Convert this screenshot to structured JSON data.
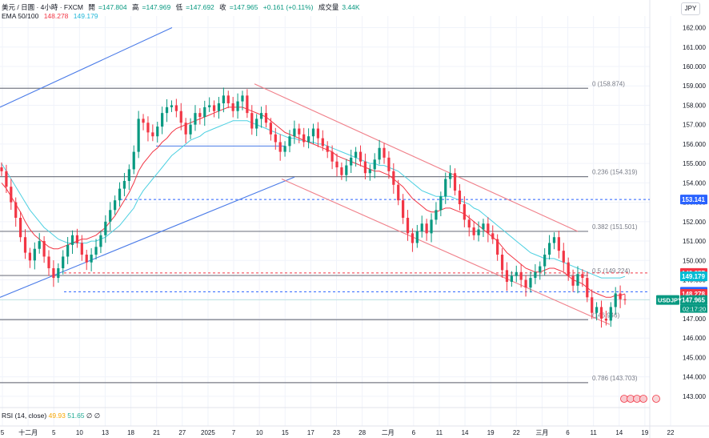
{
  "header": {
    "symbol": "美元 / 日圓 · 4小時 · FXCM",
    "open_label": "開",
    "open_value": "=147.804",
    "high_label": "高",
    "high_value": "=147.969",
    "low_label": "低",
    "low_value": "=147.692",
    "close_label": "收",
    "close_value": "=147.965",
    "change": "+0.161 (+0.11%)",
    "volume_label": "成交量",
    "volume_value": "3.44K",
    "ema_label": "EMA 50/100",
    "ema50_value": "148.278",
    "ema100_value": "149.179"
  },
  "currency": "JPY",
  "rsi": {
    "label": "RSI (14, close)",
    "value1": "49.93",
    "value2": "51.65",
    "value3": "∅",
    "value4": "∅"
  },
  "colors": {
    "up": "#089981",
    "down": "#f23645",
    "ema50": "#f23645",
    "ema100": "#4dd0e1",
    "channel_up": "#4a7be8",
    "channel_down": "#f0808a",
    "fib": "#787b86",
    "blue_dash": "#2962ff",
    "red_dash": "#f23645"
  },
  "chart_data": {
    "type": "candlestick",
    "y_axis": {
      "range": [
        142.5,
        162.6
      ],
      "ticks": [
        "162.000",
        "161.000",
        "160.000",
        "159.000",
        "158.000",
        "157.000",
        "156.000",
        "155.000",
        "154.000",
        "153.000",
        "152.000",
        "151.000",
        "150.000",
        "149.000",
        "148.000",
        "147.000",
        "146.000",
        "145.000",
        "144.000",
        "143.000"
      ]
    },
    "x_axis": {
      "ticks": [
        "5",
        "十二月",
        "5",
        "10",
        "13",
        "18",
        "21",
        "27",
        "2025",
        "7",
        "10",
        "15",
        "17",
        "23",
        "28",
        "二月",
        "6",
        "11",
        "14",
        "19",
        "22",
        "三月",
        "6",
        "11",
        "14",
        "19",
        "22"
      ]
    },
    "fib_levels": [
      {
        "label": "0 (158.874)",
        "value": 158.874
      },
      {
        "label": "0.236 (154.319)",
        "value": 154.319
      },
      {
        "label": "0.382 (151.501)",
        "value": 151.501
      },
      {
        "label": "0.5 (149.224)",
        "value": 149.224
      },
      {
        "label": "(146.946)",
        "value": 146.946
      },
      {
        "label": "0.786 (143.703)",
        "value": 143.703
      }
    ],
    "price_tags": [
      {
        "label": "153.141",
        "value": 153.141,
        "color": "#2962ff"
      },
      {
        "label": "149.357",
        "value": 149.357,
        "color": "#f23645"
      },
      {
        "label": "149.179",
        "value": 149.179,
        "color": "#00bcd4"
      },
      {
        "label": "148.389",
        "value": 148.389,
        "color": "#2962ff"
      },
      {
        "label": "148.278",
        "value": 148.278,
        "color": "#f23645"
      },
      {
        "label": "147.965",
        "value": 147.965,
        "color": "#089981"
      }
    ],
    "symbol_tag": "USDJPY",
    "countdown": "02:17:20",
    "dashed_levels": [
      {
        "value": 153.141,
        "color": "#2962ff"
      },
      {
        "value": 149.357,
        "color": "#f23645"
      },
      {
        "value": 148.389,
        "color": "#2962ff"
      }
    ],
    "close_series": [
      154.6,
      153.8,
      153.0,
      152.2,
      151.2,
      150.4,
      150.0,
      150.6,
      151.0,
      150.2,
      149.6,
      149.1,
      149.6,
      150.2,
      150.8,
      151.3,
      150.9,
      150.3,
      149.9,
      150.3,
      150.7,
      151.3,
      152.0,
      152.6,
      153.1,
      153.7,
      154.1,
      154.7,
      155.6,
      157.3,
      157.1,
      156.6,
      156.4,
      156.9,
      157.6,
      157.9,
      158.0,
      157.7,
      157.1,
      156.5,
      157.0,
      157.6,
      157.4,
      157.9,
      158.0,
      157.7,
      158.1,
      158.5,
      158.1,
      157.7,
      158.2,
      158.5,
      157.6,
      156.8,
      157.3,
      157.6,
      157.1,
      156.5,
      156.1,
      155.6,
      155.9,
      156.4,
      156.8,
      156.5,
      156.1,
      156.4,
      156.8,
      156.3,
      155.9,
      155.6,
      155.1,
      154.8,
      154.4,
      154.9,
      155.3,
      155.6,
      155.1,
      154.5,
      154.7,
      155.2,
      155.8,
      155.3,
      154.6,
      153.9,
      153.1,
      152.2,
      151.4,
      150.9,
      151.5,
      151.9,
      151.4,
      152.1,
      152.6,
      153.3,
      154.2,
      154.5,
      153.6,
      152.9,
      152.1,
      151.7,
      151.3,
      151.6,
      151.9,
      151.4,
      151.1,
      150.3,
      149.5,
      148.9,
      149.2,
      149.4,
      149.0,
      148.6,
      149.1,
      149.4,
      149.7,
      150.3,
      150.9,
      151.2,
      150.5,
      149.9,
      149.2,
      148.7,
      149.3,
      149.1,
      148.1,
      147.3,
      147.6,
      147.0,
      146.9,
      147.6,
      148.3,
      148.0,
      147.965
    ],
    "ema50_series": [
      154.0,
      153.7,
      153.3,
      152.9,
      152.5,
      152.0,
      151.6,
      151.3,
      151.1,
      150.9,
      150.7,
      150.6,
      150.6,
      150.7,
      150.8,
      150.9,
      151.0,
      151.1,
      151.1,
      151.2,
      151.3,
      151.5,
      151.7,
      152.0,
      152.3,
      152.7,
      153.1,
      153.5,
      154.0,
      154.6,
      155.0,
      155.3,
      155.6,
      155.8,
      156.1,
      156.3,
      156.6,
      156.8,
      156.9,
      157.0,
      157.1,
      157.2,
      157.3,
      157.4,
      157.5,
      157.6,
      157.7,
      157.8,
      157.9,
      157.9,
      157.9,
      157.9,
      157.8,
      157.7,
      157.6,
      157.5,
      157.4,
      157.2,
      157.0,
      156.8,
      156.6,
      156.5,
      156.4,
      156.3,
      156.2,
      156.1,
      156.0,
      155.9,
      155.8,
      155.7,
      155.6,
      155.4,
      155.3,
      155.2,
      155.1,
      155.0,
      154.9,
      154.8,
      154.7,
      154.6,
      154.6,
      154.5,
      154.4,
      154.2,
      154.0,
      153.8,
      153.5,
      153.2,
      153.0,
      152.8,
      152.6,
      152.5,
      152.5,
      152.6,
      152.7,
      152.7,
      152.6,
      152.5,
      152.4,
      152.2,
      152.0,
      151.8,
      151.6,
      151.4,
      151.2,
      151.0,
      150.7,
      150.4,
      150.2,
      150.0,
      149.8,
      149.6,
      149.5,
      149.4,
      149.4,
      149.5,
      149.6,
      149.6,
      149.5,
      149.4,
      149.2,
      149.0,
      148.9,
      148.8,
      148.6,
      148.4,
      148.3,
      148.2,
      148.1,
      148.1,
      148.2,
      148.2,
      148.278
    ],
    "ema100_series": [
      155.0,
      154.6,
      154.2,
      153.8,
      153.4,
      153.0,
      152.6,
      152.3,
      152.0,
      151.7,
      151.5,
      151.3,
      151.1,
      151.0,
      150.9,
      150.9,
      150.9,
      150.9,
      150.9,
      151.0,
      151.0,
      151.1,
      151.2,
      151.4,
      151.6,
      151.8,
      152.1,
      152.4,
      152.7,
      153.2,
      153.6,
      153.9,
      154.2,
      154.5,
      154.8,
      155.1,
      155.4,
      155.6,
      155.8,
      156.0,
      156.2,
      156.3,
      156.4,
      156.6,
      156.7,
      156.8,
      156.9,
      157.0,
      157.1,
      157.2,
      157.2,
      157.2,
      157.2,
      157.1,
      157.0,
      156.9,
      156.8,
      156.7,
      156.6,
      156.5,
      156.4,
      156.3,
      156.3,
      156.2,
      156.2,
      156.1,
      156.1,
      156.0,
      156.0,
      155.9,
      155.8,
      155.7,
      155.6,
      155.5,
      155.4,
      155.3,
      155.2,
      155.1,
      155.0,
      155.0,
      154.9,
      154.9,
      154.8,
      154.7,
      154.6,
      154.4,
      154.2,
      154.0,
      153.8,
      153.6,
      153.5,
      153.4,
      153.3,
      153.3,
      153.3,
      153.3,
      153.2,
      153.1,
      153.0,
      152.9,
      152.7,
      152.6,
      152.4,
      152.2,
      152.0,
      151.8,
      151.6,
      151.4,
      151.2,
      151.0,
      150.8,
      150.6,
      150.4,
      150.3,
      150.2,
      150.1,
      150.1,
      150.1,
      150.0,
      149.9,
      149.8,
      149.7,
      149.6,
      149.5,
      149.4,
      149.3,
      149.2,
      149.1,
      149.1,
      149.1,
      149.1,
      149.1,
      149.179
    ]
  }
}
